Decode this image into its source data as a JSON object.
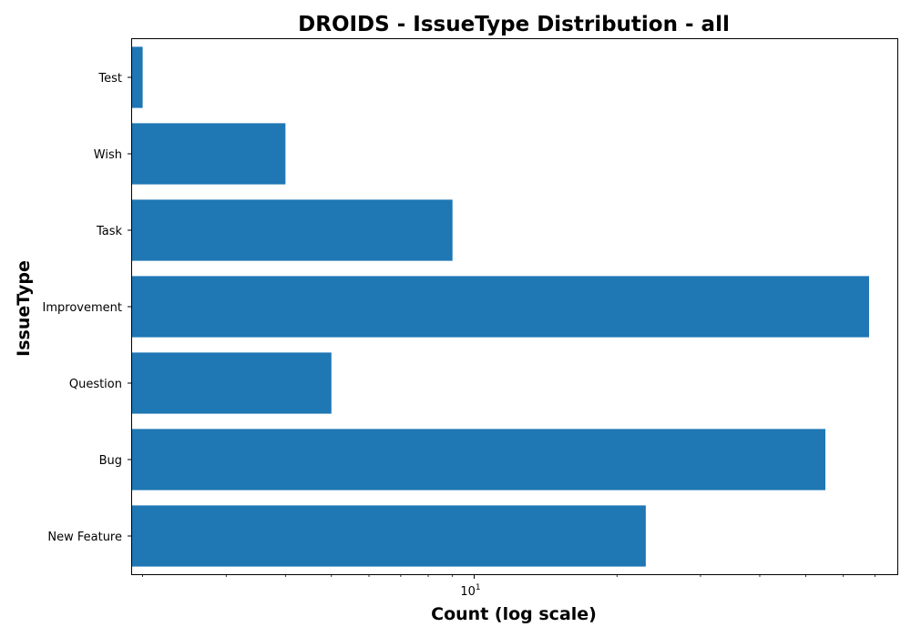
{
  "chart_data": {
    "type": "bar",
    "orientation": "horizontal",
    "title": "DROIDS - IssueType Distribution - all",
    "xlabel": "Count (log scale)",
    "ylabel": "IssueType",
    "xscale": "log",
    "xlim": [
      1.9,
      78
    ],
    "x_major_ticks": [
      {
        "value": 10,
        "label": "10"
      }
    ],
    "categories": [
      "New Feature",
      "Bug",
      "Question",
      "Improvement",
      "Task",
      "Wish",
      "Test"
    ],
    "values": [
      23,
      55,
      5,
      68,
      9,
      4,
      2
    ],
    "bar_color": "#1f77b4",
    "grid": false,
    "legend": "none"
  }
}
